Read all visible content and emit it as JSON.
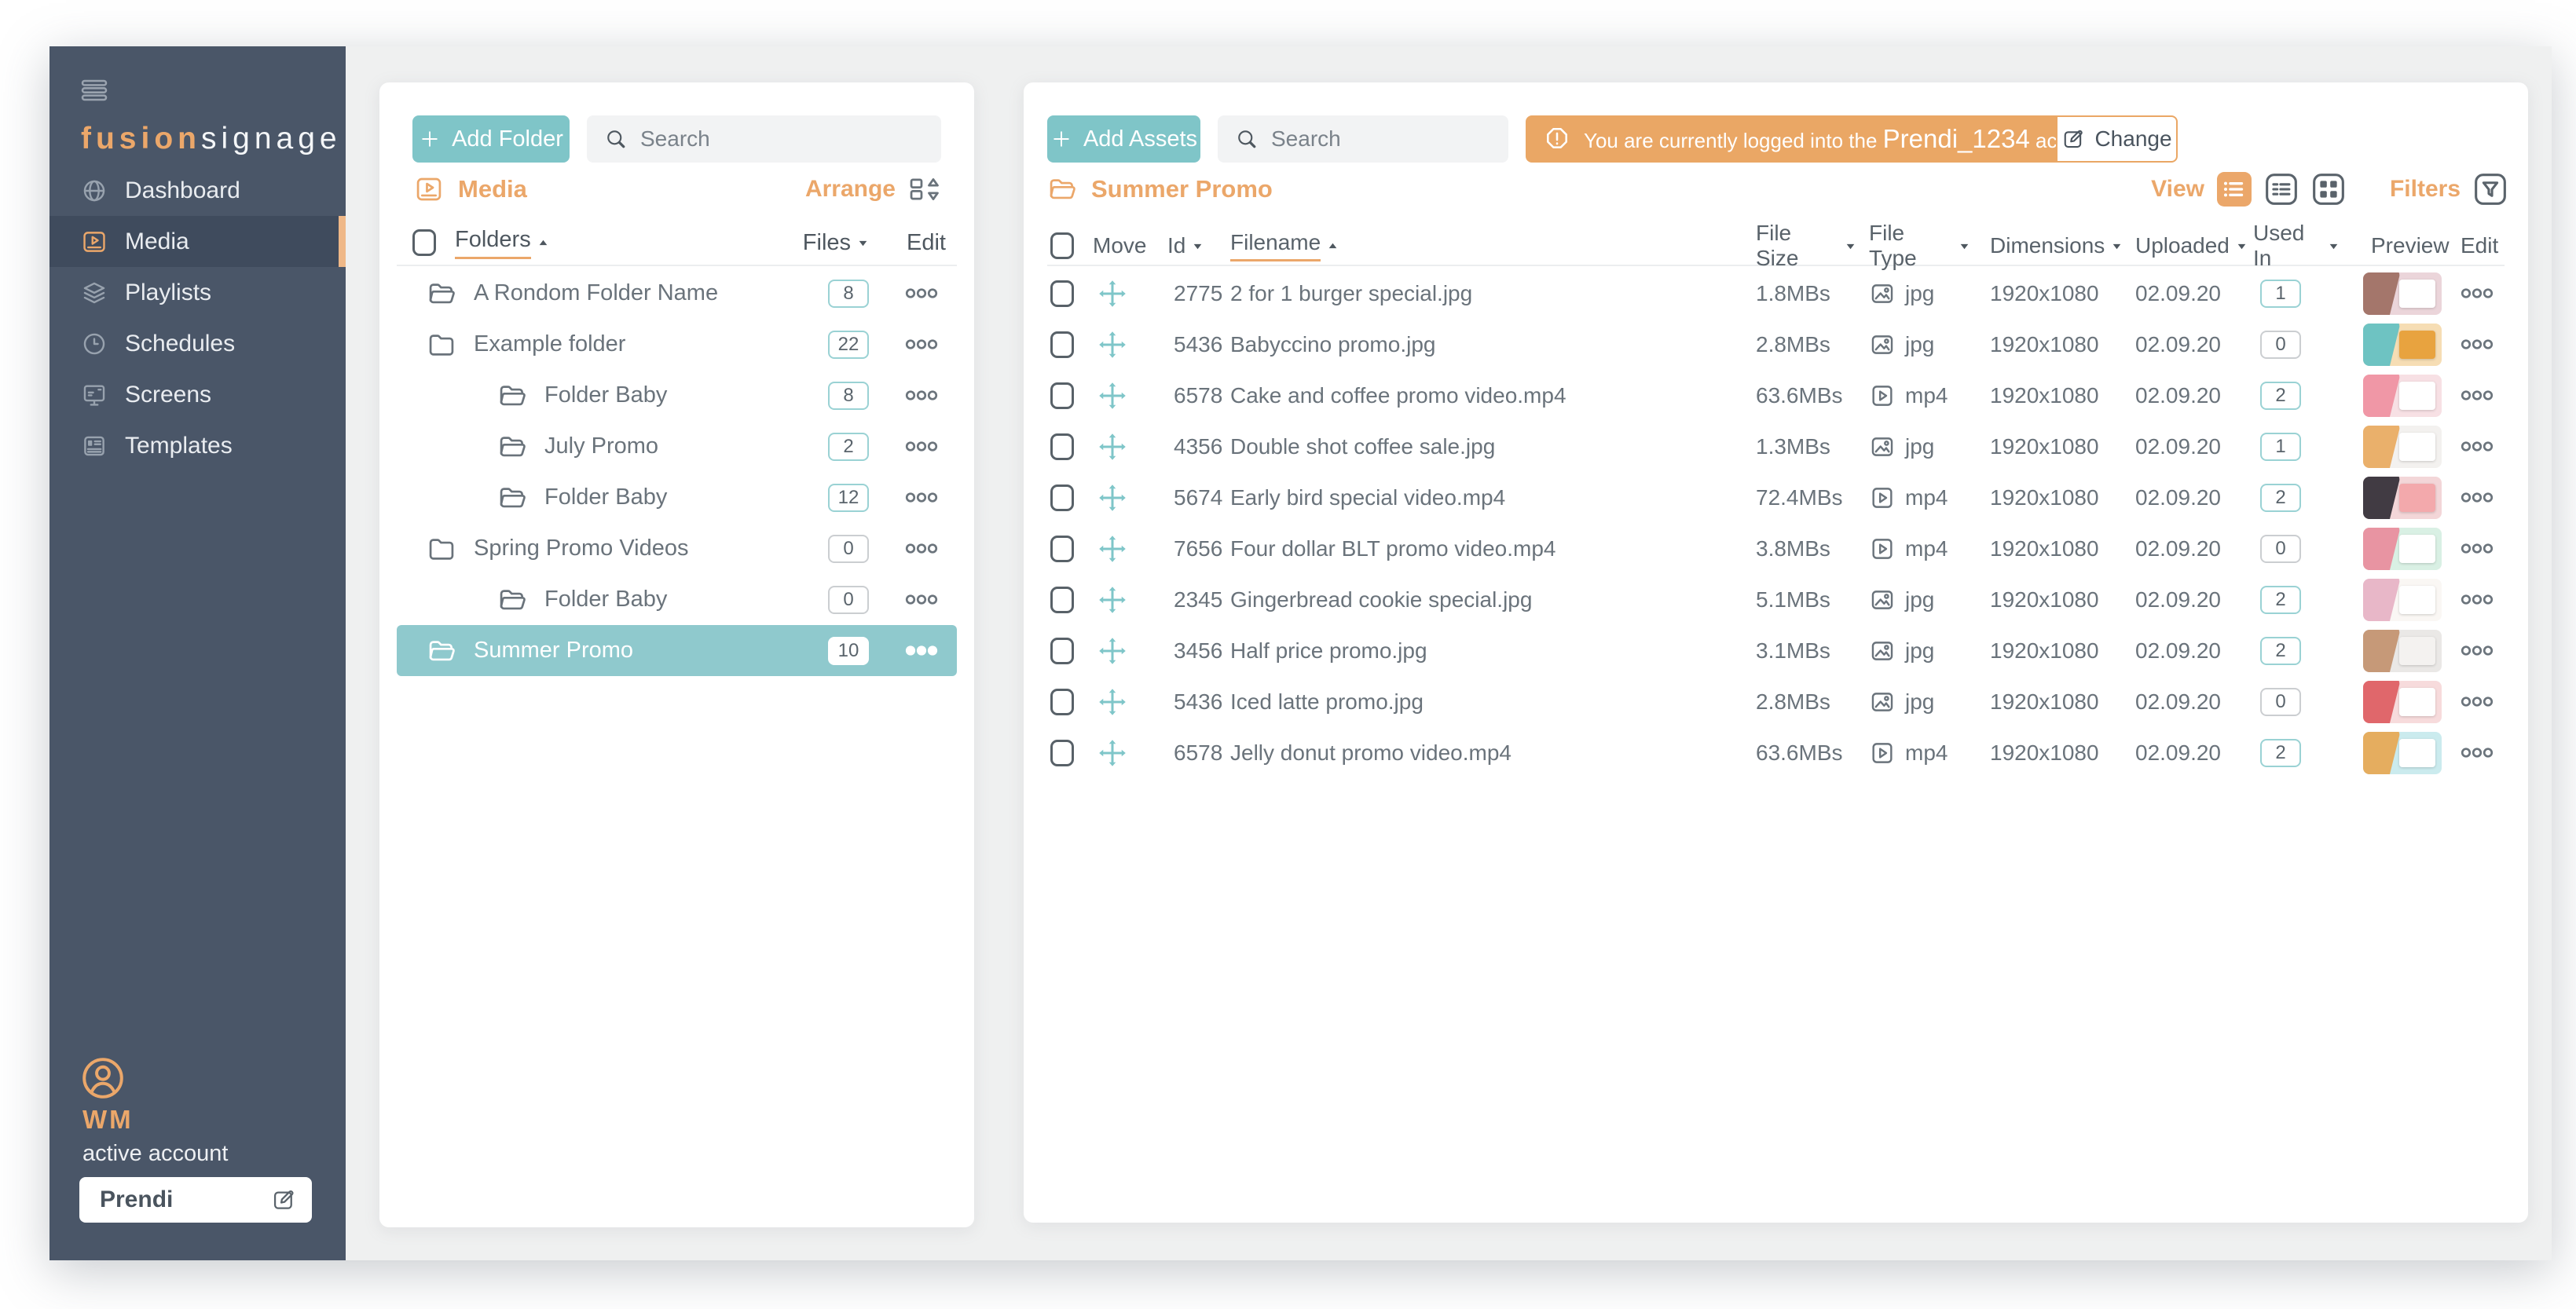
{
  "colors": {
    "accent_orange": "#EBA76A",
    "banner_orange": "#EAA765",
    "accent_teal": "#7FC5C8",
    "selected_row_teal": "#8FC9CD",
    "sidebar_bg": "#4A5668"
  },
  "sidebar": {
    "logo": {
      "brand_primary": "fusion",
      "brand_secondary": "signage"
    },
    "nav": [
      {
        "label": "Dashboard",
        "icon": "globe-icon",
        "active": false
      },
      {
        "label": "Media",
        "icon": "media-icon",
        "active": true
      },
      {
        "label": "Playlists",
        "icon": "layers-icon",
        "active": false
      },
      {
        "label": "Schedules",
        "icon": "clock-icon",
        "active": false
      },
      {
        "label": "Screens",
        "icon": "monitor-icon",
        "active": false
      },
      {
        "label": "Templates",
        "icon": "template-icon",
        "active": false
      }
    ],
    "user": {
      "initials": "WM",
      "status_label": "active account",
      "account_name": "Prendi"
    }
  },
  "folders_panel": {
    "add_button_label": "Add Folder",
    "search_placeholder": "Search",
    "section_title": "Media",
    "arrange_label": "Arrange",
    "header": {
      "folders": "Folders",
      "files": "Files",
      "edit": "Edit"
    },
    "sort": {
      "column": "Folders",
      "direction": "asc"
    },
    "rows": [
      {
        "name": "A Rondom Folder Name",
        "files": "8",
        "indent": false,
        "open": true,
        "selected": false
      },
      {
        "name": "Example folder",
        "files": "22",
        "indent": false,
        "open": false,
        "selected": false
      },
      {
        "name": "Folder Baby",
        "files": "8",
        "indent": true,
        "open": true,
        "selected": false
      },
      {
        "name": "July Promo",
        "files": "2",
        "indent": true,
        "open": true,
        "selected": false
      },
      {
        "name": "Folder Baby",
        "files": "12",
        "indent": true,
        "open": true,
        "selected": false
      },
      {
        "name": "Spring Promo Videos",
        "files": "0",
        "indent": false,
        "open": false,
        "selected": false
      },
      {
        "name": "Folder Baby",
        "files": "0",
        "indent": true,
        "open": true,
        "selected": false
      },
      {
        "name": "Summer Promo",
        "files": "10",
        "indent": false,
        "open": true,
        "selected": true
      }
    ]
  },
  "assets_panel": {
    "add_button_label": "Add Assets",
    "search_placeholder": "Search",
    "account_banner": {
      "text_before": "You are currently logged into the ",
      "account": "Prendi_1234",
      "text_after": " account",
      "change_button_label": "Change"
    },
    "title": "Summer Promo",
    "view_label": "View",
    "filters_label": "Filters",
    "columns": {
      "move": "Move",
      "id": "Id",
      "filename": "Filename",
      "file_size": "File Size",
      "file_type": "File Type",
      "dimensions": "Dimensions",
      "uploaded": "Uploaded",
      "used_in": "Used In",
      "preview": "Preview",
      "edit": "Edit"
    },
    "sort": {
      "column": "Filename",
      "direction": "asc"
    },
    "rows": [
      {
        "id": "2775",
        "filename": "2 for 1 burger special.jpg",
        "file_size": "1.8MBs",
        "file_type": "jpg",
        "dimensions": "1920x1080",
        "uploaded": "02.09.20",
        "used_in": "1",
        "thumb": {
          "bg": "#EBD5DA",
          "accent": "#9C6B5E",
          "card": "#FFFFFF"
        }
      },
      {
        "id": "5436",
        "filename": "Babyccino promo.jpg",
        "file_size": "2.8MBs",
        "file_type": "jpg",
        "dimensions": "1920x1080",
        "uploaded": "02.09.20",
        "used_in": "0",
        "thumb": {
          "bg": "#F6DDB4",
          "accent": "#5FC0C3",
          "card": "#E8A33F"
        }
      },
      {
        "id": "6578",
        "filename": "Cake and coffee promo video.mp4",
        "file_size": "63.6MBs",
        "file_type": "mp4",
        "dimensions": "1920x1080",
        "uploaded": "02.09.20",
        "used_in": "2",
        "thumb": {
          "bg": "#F7E0E4",
          "accent": "#EE8F9E",
          "card": "#FFFFFF"
        }
      },
      {
        "id": "4356",
        "filename": "Double shot coffee sale.jpg",
        "file_size": "1.3MBs",
        "file_type": "jpg",
        "dimensions": "1920x1080",
        "uploaded": "02.09.20",
        "used_in": "1",
        "thumb": {
          "bg": "#F3F1EF",
          "accent": "#E9A85C",
          "card": "#FFFFFF"
        }
      },
      {
        "id": "5674",
        "filename": "Early bird special video.mp4",
        "file_size": "72.4MBs",
        "file_type": "mp4",
        "dimensions": "1920x1080",
        "uploaded": "02.09.20",
        "used_in": "2",
        "thumb": {
          "bg": "#F3D6D8",
          "accent": "#2E2A33",
          "card": "#F3A9AC"
        }
      },
      {
        "id": "7656",
        "filename": "Four dollar BLT promo video.mp4",
        "file_size": "3.8MBs",
        "file_type": "mp4",
        "dimensions": "1920x1080",
        "uploaded": "02.09.20",
        "used_in": "0",
        "thumb": {
          "bg": "#D9F0E4",
          "accent": "#E9899A",
          "card": "#FFFFFF"
        }
      },
      {
        "id": "2345",
        "filename": "Gingerbread cookie special.jpg",
        "file_size": "5.1MBs",
        "file_type": "jpg",
        "dimensions": "1920x1080",
        "uploaded": "02.09.20",
        "used_in": "2",
        "thumb": {
          "bg": "#FAF7F4",
          "accent": "#E5AFC3",
          "card": "#FFFFFF"
        }
      },
      {
        "id": "3456",
        "filename": "Half price promo.jpg",
        "file_size": "3.1MBs",
        "file_type": "jpg",
        "dimensions": "1920x1080",
        "uploaded": "02.09.20",
        "used_in": "2",
        "thumb": {
          "bg": "#EAE8E6",
          "accent": "#C2906B",
          "card": "#F4F2F0"
        }
      },
      {
        "id": "5436",
        "filename": "Iced latte promo.jpg",
        "file_size": "2.8MBs",
        "file_type": "jpg",
        "dimensions": "1920x1080",
        "uploaded": "02.09.20",
        "used_in": "0",
        "thumb": {
          "bg": "#F7DBDC",
          "accent": "#DD5A5E",
          "card": "#FFFFFF"
        }
      },
      {
        "id": "6578",
        "filename": "Jelly donut promo video.mp4",
        "file_size": "63.6MBs",
        "file_type": "mp4",
        "dimensions": "1920x1080",
        "uploaded": "02.09.20",
        "used_in": "2",
        "thumb": {
          "bg": "#CBEBEE",
          "accent": "#E8A64F",
          "card": "#FFFFFF"
        }
      }
    ]
  }
}
